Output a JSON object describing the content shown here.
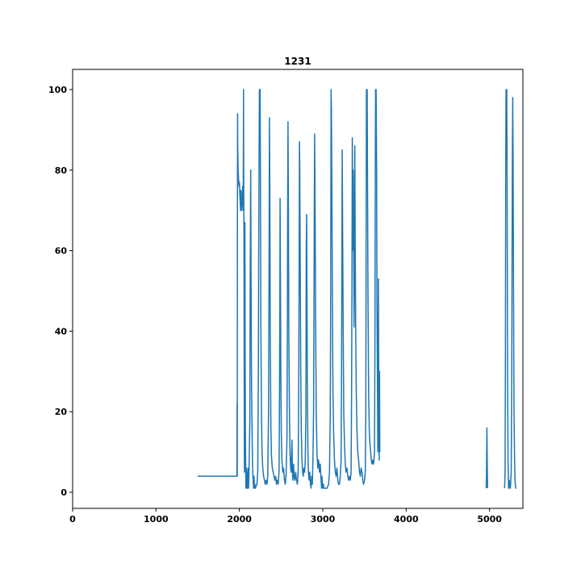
{
  "chart_data": {
    "type": "line",
    "title": "1231",
    "xlabel": "",
    "ylabel": "",
    "xlim": [
      0,
      5400
    ],
    "ylim": [
      -4,
      105
    ],
    "xticks": [
      0,
      1000,
      2000,
      3000,
      4000,
      5000
    ],
    "yticks": [
      0,
      20,
      40,
      60,
      80,
      100
    ],
    "grid": false,
    "line_color": "#1f77b4",
    "series": [
      {
        "name": "1231",
        "segments": [
          [
            [
              1500,
              4
            ],
            [
              1960,
              4
            ],
            [
              1970,
              4
            ],
            [
              1972,
              22
            ],
            [
              1974,
              4
            ],
            [
              1976,
              60
            ],
            [
              1978,
              94
            ],
            [
              1980,
              86
            ],
            [
              1985,
              80
            ],
            [
              1990,
              78
            ],
            [
              1995,
              76
            ],
            [
              2000,
              77
            ],
            [
              2005,
              74
            ],
            [
              2010,
              72
            ],
            [
              2015,
              70
            ],
            [
              2020,
              75
            ],
            [
              2025,
              70
            ],
            [
              2030,
              72
            ],
            [
              2035,
              73
            ],
            [
              2040,
              76
            ],
            [
              2045,
              70
            ],
            [
              2048,
              85
            ],
            [
              2050,
              100
            ],
            [
              2052,
              80
            ],
            [
              2055,
              60
            ],
            [
              2058,
              20
            ],
            [
              2060,
              5
            ],
            [
              2063,
              30
            ],
            [
              2066,
              67
            ],
            [
              2068,
              40
            ],
            [
              2072,
              15
            ],
            [
              2075,
              8
            ],
            [
              2078,
              1
            ],
            [
              2082,
              5
            ],
            [
              2085,
              6
            ],
            [
              2088,
              1
            ],
            [
              2092,
              5
            ],
            [
              2095,
              3
            ],
            [
              2098,
              1
            ],
            [
              2105,
              6
            ],
            [
              2110,
              1
            ],
            [
              2115,
              5
            ],
            [
              2125,
              18
            ],
            [
              2130,
              55
            ],
            [
              2133,
              68
            ],
            [
              2136,
              80
            ],
            [
              2140,
              55
            ],
            [
              2145,
              30
            ],
            [
              2150,
              18
            ],
            [
              2155,
              10
            ],
            [
              2160,
              5
            ],
            [
              2165,
              3
            ],
            [
              2170,
              1
            ],
            [
              2175,
              4
            ],
            [
              2180,
              1
            ],
            [
              2185,
              2
            ],
            [
              2190,
              1
            ],
            [
              2210,
              2
            ],
            [
              2220,
              5
            ],
            [
              2228,
              30
            ],
            [
              2232,
              60
            ],
            [
              2236,
              85
            ],
            [
              2240,
              100
            ],
            [
              2248,
              100
            ],
            [
              2252,
              80
            ],
            [
              2258,
              40
            ],
            [
              2265,
              18
            ],
            [
              2272,
              10
            ],
            [
              2280,
              6
            ],
            [
              2290,
              4
            ],
            [
              2300,
              3
            ],
            [
              2310,
              2
            ],
            [
              2320,
              3
            ],
            [
              2330,
              2
            ],
            [
              2340,
              4
            ],
            [
              2350,
              20
            ],
            [
              2356,
              60
            ],
            [
              2360,
              93
            ],
            [
              2365,
              75
            ],
            [
              2370,
              40
            ],
            [
              2378,
              16
            ],
            [
              2385,
              9
            ],
            [
              2395,
              6
            ],
            [
              2405,
              5
            ],
            [
              2415,
              4
            ],
            [
              2425,
              3
            ],
            [
              2435,
              4
            ],
            [
              2445,
              2
            ],
            [
              2455,
              3
            ],
            [
              2465,
              2
            ],
            [
              2475,
              5
            ],
            [
              2480,
              20
            ],
            [
              2485,
              45
            ],
            [
              2488,
              73
            ],
            [
              2492,
              55
            ],
            [
              2497,
              30
            ],
            [
              2503,
              15
            ],
            [
              2510,
              8
            ],
            [
              2520,
              5
            ],
            [
              2530,
              6
            ],
            [
              2540,
              3
            ],
            [
              2550,
              2
            ],
            [
              2560,
              4
            ],
            [
              2570,
              13
            ],
            [
              2575,
              40
            ],
            [
              2578,
              65
            ],
            [
              2583,
              92
            ],
            [
              2588,
              70
            ],
            [
              2593,
              40
            ],
            [
              2600,
              20
            ],
            [
              2607,
              10
            ],
            [
              2615,
              6
            ],
            [
              2622,
              5
            ],
            [
              2630,
              13
            ],
            [
              2636,
              5
            ],
            [
              2642,
              3
            ],
            [
              2650,
              7
            ],
            [
              2656,
              4
            ],
            [
              2665,
              3
            ],
            [
              2675,
              5
            ],
            [
              2685,
              3
            ],
            [
              2695,
              2
            ],
            [
              2705,
              5
            ],
            [
              2712,
              25
            ],
            [
              2716,
              55
            ],
            [
              2720,
              87
            ],
            [
              2724,
              80
            ],
            [
              2730,
              55
            ],
            [
              2736,
              30
            ],
            [
              2743,
              15
            ],
            [
              2750,
              8
            ],
            [
              2758,
              5
            ],
            [
              2766,
              4
            ],
            [
              2774,
              6
            ],
            [
              2782,
              5
            ],
            [
              2790,
              8
            ],
            [
              2798,
              20
            ],
            [
              2802,
              60
            ],
            [
              2806,
              69
            ],
            [
              2810,
              50
            ],
            [
              2816,
              25
            ],
            [
              2822,
              10
            ],
            [
              2828,
              5
            ],
            [
              2836,
              3
            ],
            [
              2844,
              5
            ],
            [
              2852,
              2
            ],
            [
              2860,
              1
            ],
            [
              2866,
              4
            ],
            [
              2875,
              2
            ],
            [
              2882,
              8
            ],
            [
              2890,
              20
            ],
            [
              2895,
              45
            ],
            [
              2898,
              70
            ],
            [
              2902,
              89
            ],
            [
              2908,
              70
            ],
            [
              2914,
              45
            ],
            [
              2922,
              20
            ],
            [
              2930,
              10
            ],
            [
              2940,
              6
            ],
            [
              2950,
              8
            ],
            [
              2960,
              5
            ],
            [
              2970,
              7
            ],
            [
              2980,
              3
            ],
            [
              2985,
              1
            ],
            [
              2990,
              4
            ],
            [
              2996,
              2
            ],
            [
              3002,
              1
            ],
            [
              3008,
              2
            ],
            [
              3014,
              1
            ],
            [
              3030,
              1
            ],
            [
              3050,
              1
            ],
            [
              3070,
              2
            ],
            [
              3080,
              5
            ],
            [
              3090,
              20
            ],
            [
              3095,
              50
            ],
            [
              3098,
              80
            ],
            [
              3100,
              100
            ],
            [
              3104,
              95
            ],
            [
              3110,
              70
            ],
            [
              3116,
              45
            ],
            [
              3122,
              25
            ],
            [
              3130,
              15
            ],
            [
              3140,
              8
            ],
            [
              3150,
              5
            ],
            [
              3160,
              4
            ],
            [
              3170,
              6
            ],
            [
              3180,
              3
            ],
            [
              3190,
              2
            ],
            [
              3200,
              2
            ],
            [
              3210,
              4
            ],
            [
              3220,
              8
            ],
            [
              3225,
              30
            ],
            [
              3229,
              60
            ],
            [
              3233,
              85
            ],
            [
              3238,
              65
            ],
            [
              3245,
              40
            ],
            [
              3252,
              20
            ],
            [
              3260,
              12
            ],
            [
              3270,
              7
            ],
            [
              3280,
              5
            ],
            [
              3290,
              6
            ],
            [
              3300,
              4
            ],
            [
              3310,
              3
            ],
            [
              3320,
              4
            ],
            [
              3330,
              3
            ],
            [
              3340,
              5
            ],
            [
              3345,
              25
            ],
            [
              3350,
              55
            ],
            [
              3354,
              88
            ],
            [
              3358,
              75
            ],
            [
              3362,
              60
            ],
            [
              3366,
              80
            ],
            [
              3370,
              65
            ],
            [
              3375,
              41
            ],
            [
              3380,
              60
            ],
            [
              3384,
              86
            ],
            [
              3388,
              65
            ],
            [
              3395,
              40
            ],
            [
              3402,
              25
            ],
            [
              3410,
              15
            ],
            [
              3420,
              10
            ],
            [
              3430,
              8
            ],
            [
              3440,
              5
            ],
            [
              3450,
              4
            ],
            [
              3460,
              6
            ],
            [
              3470,
              5
            ],
            [
              3480,
              3
            ],
            [
              3490,
              2
            ],
            [
              3500,
              3
            ],
            [
              3510,
              5
            ],
            [
              3516,
              20
            ],
            [
              3520,
              60
            ],
            [
              3524,
              100
            ],
            [
              3532,
              100
            ],
            [
              3536,
              80
            ],
            [
              3542,
              50
            ],
            [
              3550,
              25
            ],
            [
              3558,
              15
            ],
            [
              3566,
              12
            ],
            [
              3574,
              10
            ],
            [
              3582,
              8
            ],
            [
              3590,
              7
            ],
            [
              3600,
              8
            ],
            [
              3610,
              7
            ],
            [
              3620,
              10
            ],
            [
              3625,
              35
            ],
            [
              3629,
              70
            ],
            [
              3633,
              100
            ],
            [
              3640,
              100
            ],
            [
              3645,
              80
            ],
            [
              3650,
              45
            ],
            [
              3656,
              25
            ],
            [
              3660,
              10
            ],
            [
              3664,
              30
            ],
            [
              3668,
              53
            ],
            [
              3672,
              20
            ],
            [
              3676,
              8
            ],
            [
              3680,
              30
            ],
            [
              3684,
              10
            ]
          ],
          [
            [
              4960,
              1
            ],
            [
              4964,
              5
            ],
            [
              4968,
              16
            ],
            [
              4972,
              8
            ],
            [
              4976,
              1
            ]
          ],
          [
            [
              5180,
              1
            ],
            [
              5186,
              5
            ],
            [
              5190,
              30
            ],
            [
              5194,
              80
            ],
            [
              5198,
              100
            ],
            [
              5206,
              100
            ],
            [
              5210,
              80
            ],
            [
              5216,
              30
            ],
            [
              5222,
              8
            ],
            [
              5228,
              1
            ],
            [
              5236,
              3
            ],
            [
              5244,
              1
            ],
            [
              5250,
              1
            ],
            [
              5260,
              5
            ],
            [
              5266,
              30
            ],
            [
              5270,
              60
            ],
            [
              5274,
              85
            ],
            [
              5278,
              98
            ],
            [
              5282,
              85
            ],
            [
              5288,
              50
            ],
            [
              5294,
              20
            ],
            [
              5300,
              8
            ],
            [
              5306,
              3
            ],
            [
              5312,
              1
            ],
            [
              5320,
              1
            ]
          ]
        ]
      }
    ]
  }
}
